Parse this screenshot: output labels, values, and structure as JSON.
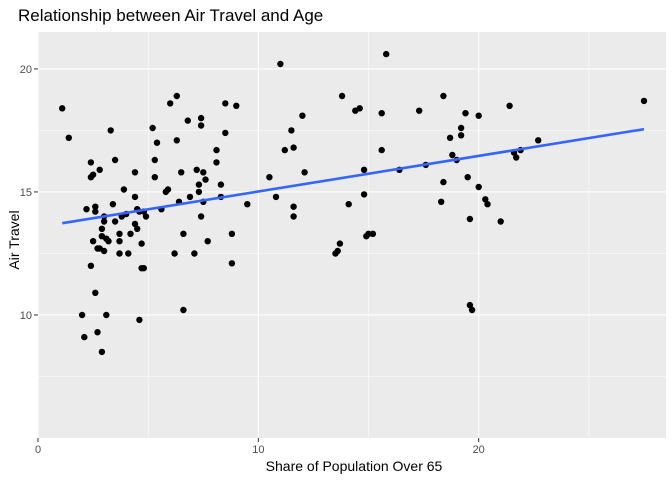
{
  "chart_data": {
    "type": "scatter",
    "title": "Relationship between Air Travel and Age",
    "xlabel": "Share of Population Over 65",
    "ylabel": "Air Travel",
    "xlim": [
      0,
      28.5
    ],
    "ylim": [
      5,
      21.5
    ],
    "x_ticks": [
      0,
      10,
      20
    ],
    "y_ticks": [
      10,
      15,
      20
    ],
    "x_minor_ticks": [
      5,
      15,
      25
    ],
    "y_minor_ticks": [
      7.5,
      12.5,
      17.5
    ],
    "grid": true,
    "legend": "none",
    "colors": {
      "panel": "#ebebeb",
      "grid_major": "#ffffff",
      "point": "#000000",
      "trend": "#3366ff",
      "tick": "#333333"
    },
    "trend_line": {
      "x": [
        1.1,
        27.5
      ],
      "y": [
        13.73,
        17.55
      ]
    },
    "points": [
      [
        1.1,
        18.4
      ],
      [
        1.4,
        17.2
      ],
      [
        2.0,
        10.0
      ],
      [
        2.1,
        9.1
      ],
      [
        2.2,
        14.3
      ],
      [
        2.4,
        16.2
      ],
      [
        2.4,
        15.6
      ],
      [
        2.5,
        15.7
      ],
      [
        2.4,
        12.0
      ],
      [
        2.5,
        13.0
      ],
      [
        2.6,
        14.4
      ],
      [
        2.6,
        14.2
      ],
      [
        2.6,
        10.9
      ],
      [
        2.7,
        9.3
      ],
      [
        2.7,
        12.7
      ],
      [
        2.8,
        15.9
      ],
      [
        2.8,
        12.7
      ],
      [
        2.9,
        13.5
      ],
      [
        2.9,
        13.2
      ],
      [
        3.0,
        13.8
      ],
      [
        2.9,
        8.5
      ],
      [
        3.0,
        14.0
      ],
      [
        3.1,
        13.1
      ],
      [
        3.1,
        10.0
      ],
      [
        3.0,
        12.6
      ],
      [
        3.2,
        13.0
      ],
      [
        3.3,
        17.5
      ],
      [
        3.4,
        14.5
      ],
      [
        3.5,
        13.8
      ],
      [
        3.5,
        16.3
      ],
      [
        3.7,
        12.5
      ],
      [
        3.7,
        13.3
      ],
      [
        3.7,
        13.0
      ],
      [
        3.8,
        14.0
      ],
      [
        3.9,
        15.1
      ],
      [
        4.0,
        14.1
      ],
      [
        4.1,
        12.5
      ],
      [
        4.2,
        13.3
      ],
      [
        4.4,
        15.8
      ],
      [
        4.4,
        14.8
      ],
      [
        4.4,
        13.7
      ],
      [
        4.5,
        13.5
      ],
      [
        4.5,
        14.3
      ],
      [
        4.6,
        9.8
      ],
      [
        4.6,
        14.2
      ],
      [
        4.7,
        12.9
      ],
      [
        4.7,
        11.9
      ],
      [
        4.8,
        11.9
      ],
      [
        4.8,
        14.2
      ],
      [
        4.9,
        14.0
      ],
      [
        5.2,
        17.6
      ],
      [
        5.3,
        16.3
      ],
      [
        5.3,
        15.6
      ],
      [
        5.4,
        17.0
      ],
      [
        5.6,
        14.3
      ],
      [
        5.8,
        15.0
      ],
      [
        5.9,
        15.1
      ],
      [
        6.0,
        18.6
      ],
      [
        6.2,
        12.5
      ],
      [
        6.3,
        18.9
      ],
      [
        6.3,
        17.1
      ],
      [
        6.4,
        14.6
      ],
      [
        6.5,
        15.8
      ],
      [
        6.6,
        13.3
      ],
      [
        6.6,
        10.2
      ],
      [
        6.8,
        17.9
      ],
      [
        6.9,
        14.8
      ],
      [
        7.1,
        12.5
      ],
      [
        7.2,
        15.9
      ],
      [
        7.3,
        15.3
      ],
      [
        7.3,
        15.0
      ],
      [
        7.4,
        14.0
      ],
      [
        7.4,
        18.0
      ],
      [
        7.4,
        17.7
      ],
      [
        7.5,
        14.6
      ],
      [
        7.5,
        15.8
      ],
      [
        7.6,
        15.5
      ],
      [
        7.7,
        13.0
      ],
      [
        8.1,
        16.7
      ],
      [
        8.1,
        16.2
      ],
      [
        8.3,
        15.3
      ],
      [
        8.3,
        14.8
      ],
      [
        8.5,
        18.6
      ],
      [
        8.5,
        17.4
      ],
      [
        8.8,
        12.1
      ],
      [
        8.8,
        13.3
      ],
      [
        9.0,
        18.5
      ],
      [
        9.5,
        14.5
      ],
      [
        10.5,
        15.6
      ],
      [
        10.8,
        14.8
      ],
      [
        11.0,
        20.2
      ],
      [
        11.2,
        16.7
      ],
      [
        11.5,
        17.5
      ],
      [
        11.6,
        14.4
      ],
      [
        11.6,
        14.0
      ],
      [
        11.6,
        16.8
      ],
      [
        12.0,
        18.1
      ],
      [
        12.1,
        15.8
      ],
      [
        13.5,
        12.5
      ],
      [
        13.6,
        12.6
      ],
      [
        13.7,
        12.9
      ],
      [
        13.8,
        18.9
      ],
      [
        14.1,
        14.5
      ],
      [
        14.4,
        18.3
      ],
      [
        14.6,
        18.4
      ],
      [
        14.8,
        15.9
      ],
      [
        14.8,
        14.9
      ],
      [
        14.9,
        13.2
      ],
      [
        15.0,
        13.3
      ],
      [
        15.2,
        13.3
      ],
      [
        15.6,
        18.2
      ],
      [
        15.6,
        16.7
      ],
      [
        15.8,
        20.6
      ],
      [
        16.4,
        15.9
      ],
      [
        17.3,
        18.3
      ],
      [
        17.6,
        16.1
      ],
      [
        18.3,
        14.6
      ],
      [
        18.4,
        18.9
      ],
      [
        18.4,
        15.4
      ],
      [
        18.7,
        17.2
      ],
      [
        18.8,
        16.5
      ],
      [
        19.0,
        16.3
      ],
      [
        19.2,
        17.3
      ],
      [
        19.2,
        17.6
      ],
      [
        19.4,
        18.2
      ],
      [
        19.5,
        15.6
      ],
      [
        19.6,
        13.9
      ],
      [
        19.6,
        10.4
      ],
      [
        19.7,
        10.2
      ],
      [
        20.0,
        18.1
      ],
      [
        20.0,
        15.2
      ],
      [
        20.3,
        14.7
      ],
      [
        20.4,
        14.5
      ],
      [
        21.0,
        13.8
      ],
      [
        21.4,
        18.5
      ],
      [
        21.6,
        16.6
      ],
      [
        21.7,
        16.4
      ],
      [
        21.9,
        16.7
      ],
      [
        22.7,
        17.1
      ],
      [
        27.5,
        18.7
      ]
    ]
  }
}
